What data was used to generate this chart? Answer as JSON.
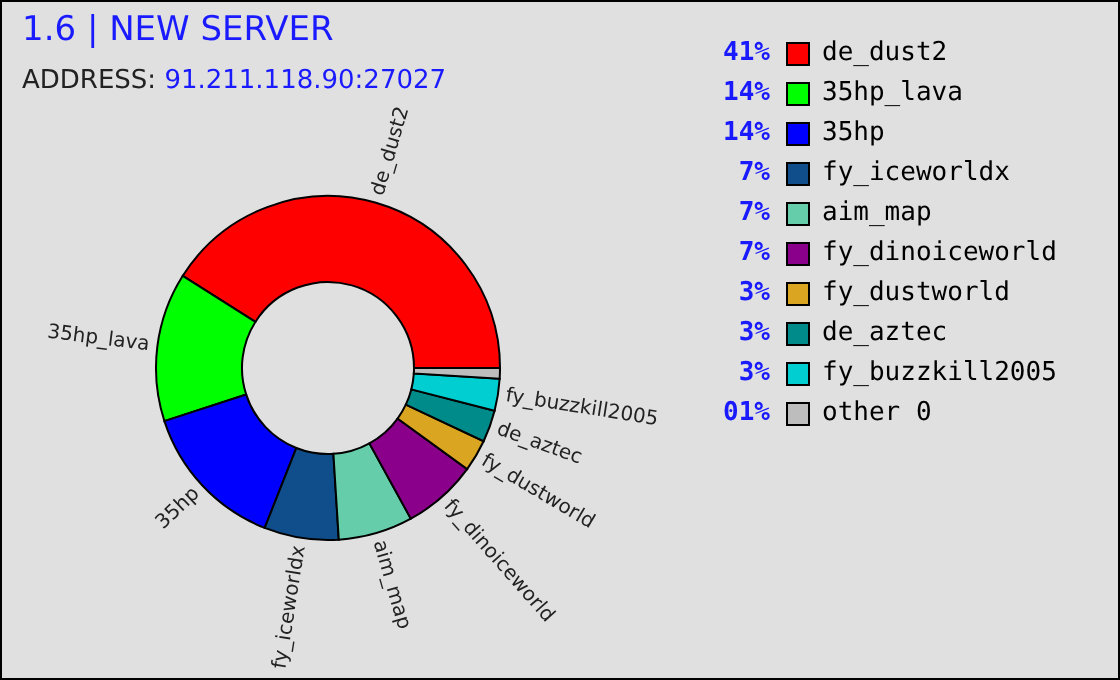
{
  "chart_data": {
    "type": "donut",
    "title": "1.6 | NEW SERVER",
    "subtitle": "ADDRESS: 91.211.118.90:27027",
    "categories": [
      "de_dust2",
      "35hp_lava",
      "35hp",
      "fy_iceworldx",
      "aim_map",
      "fy_dinoiceworld",
      "fy_dustworld",
      "de_aztec",
      "fy_buzzkill2005",
      "other 0"
    ],
    "values": [
      41,
      14,
      14,
      7,
      7,
      7,
      3,
      3,
      3,
      1
    ],
    "value_labels": [
      "41%",
      "14%",
      "14%",
      "7%",
      "7%",
      "7%",
      "3%",
      "3%",
      "3%",
      "01%"
    ],
    "colors": [
      "#ff0000",
      "#00ff00",
      "#0000ff",
      "#104e8b",
      "#66cdaa",
      "#8b008b",
      "#daa520",
      "#008b8b",
      "#00ced1",
      "#bdbdbd"
    ],
    "legend": "right"
  }
}
